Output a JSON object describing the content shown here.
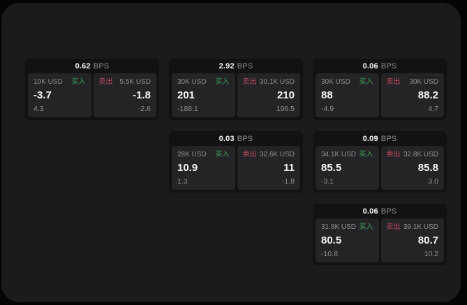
{
  "page": {
    "bps_suffix": "BPS",
    "buy_label": "买入",
    "sell_label": "卖出"
  },
  "colors": {
    "page_bg": "#050505",
    "panel_bg": "#1b1b1d",
    "card_bg": "#121214",
    "tile_bg": "#242427",
    "text_primary": "#f5f5f7",
    "text_muted": "#8f8f94",
    "buy_green": "#3da35c",
    "sell_red": "#c24a60"
  },
  "cards": [
    {
      "bps": "0.62",
      "row": 1,
      "col": 1,
      "buy": {
        "amount": "10K USD",
        "price": "-3.7",
        "delta": "4.3"
      },
      "sell": {
        "amount": "5.5K USD",
        "price": "-1.8",
        "delta": "-2.6"
      }
    },
    {
      "bps": "2.92",
      "row": 1,
      "col": 2,
      "buy": {
        "amount": "30K USD",
        "price": "201",
        "delta": "-188.1"
      },
      "sell": {
        "amount": "30.1K USD",
        "price": "210",
        "delta": "196.5"
      }
    },
    {
      "bps": "0.06",
      "row": 1,
      "col": 3,
      "buy": {
        "amount": "30K USD",
        "price": "88",
        "delta": "-4.9"
      },
      "sell": {
        "amount": "30K USD",
        "price": "88.2",
        "delta": "4.7"
      }
    },
    {
      "bps": "0.03",
      "row": 2,
      "col": 2,
      "buy": {
        "amount": "28K USD",
        "price": "10.9",
        "delta": "1.3"
      },
      "sell": {
        "amount": "32.6K USD",
        "price": "11",
        "delta": "-1.8"
      }
    },
    {
      "bps": "0.09",
      "row": 2,
      "col": 3,
      "buy": {
        "amount": "34.1K USD",
        "price": "85.5",
        "delta": "-3.1"
      },
      "sell": {
        "amount": "32.8K USD",
        "price": "85.8",
        "delta": "3.0"
      }
    },
    {
      "bps": "0.06",
      "row": 3,
      "col": 3,
      "buy": {
        "amount": "31.8K USD",
        "price": "80.5",
        "delta": "-10.8"
      },
      "sell": {
        "amount": "39.1K USD",
        "price": "80.7",
        "delta": "10.2"
      }
    }
  ]
}
